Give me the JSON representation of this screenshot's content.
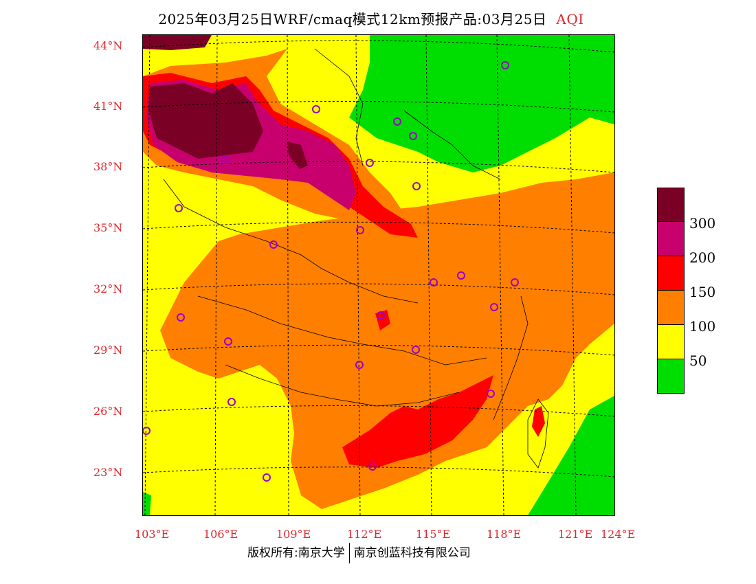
{
  "title": "2025年03月25日WRF/cmaq模式12km预报产品:03月25日",
  "variable": "AQI",
  "lat_labels": [
    "44°N",
    "41°N",
    "38°N",
    "35°N",
    "32°N",
    "29°N",
    "26°N",
    "23°N"
  ],
  "lon_labels": [
    "103°E",
    "106°E",
    "109°E",
    "112°E",
    "115°E",
    "118°E",
    "121°E",
    "124°E"
  ],
  "legend": {
    "colors": [
      "#7b0026",
      "#c8006e",
      "#ff0000",
      "#ff7f00",
      "#ffff00",
      "#00dd00"
    ],
    "labels": [
      "300",
      "200",
      "150",
      "100",
      "50"
    ]
  },
  "footer": {
    "left": "版权所有:南京大学",
    "right": "南京创蓝科技有限公司"
  }
}
